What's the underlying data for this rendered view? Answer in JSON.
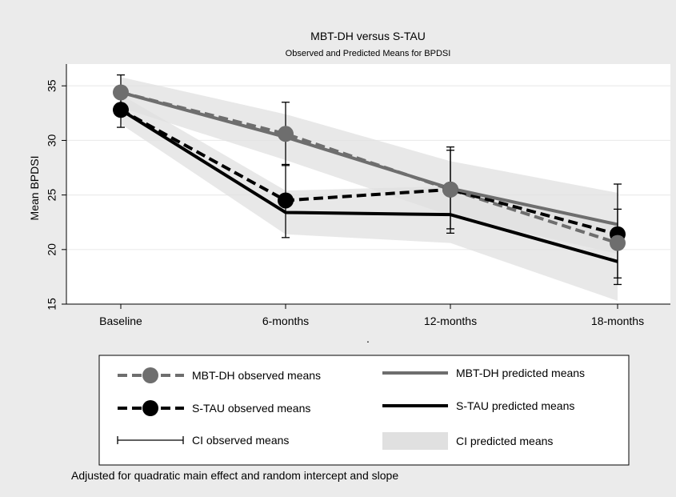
{
  "chart_data": {
    "type": "line",
    "title": "MBT-DH versus S-TAU",
    "subtitle": "Observed and Predicted Means for BPDSI",
    "xlabel": ".",
    "ylabel": "Mean BPDSI",
    "categories": [
      "Baseline",
      "6-months",
      "12-months",
      "18-months"
    ],
    "ylim": [
      15,
      37
    ],
    "yticks": [
      15,
      20,
      25,
      30,
      35
    ],
    "grid": true,
    "legend_position": "bottom",
    "note": "Adjusted for quadratic main effect and random intercept and slope",
    "series": [
      {
        "name": "MBT-DH observed means",
        "kind": "observed",
        "color": "#6e6e6e",
        "values": [
          34.4,
          30.6,
          25.5,
          20.6
        ]
      },
      {
        "name": "S-TAU observed means",
        "kind": "observed",
        "color": "#000000",
        "values": [
          32.8,
          24.5,
          25.5,
          21.4
        ]
      },
      {
        "name": "MBT-DH predicted means",
        "kind": "predicted",
        "color": "#6e6e6e",
        "values": [
          34.4,
          30.3,
          25.6,
          22.3
        ]
      },
      {
        "name": "S-TAU predicted means",
        "kind": "predicted",
        "color": "#000000",
        "values": [
          32.8,
          23.4,
          23.2,
          18.9
        ]
      }
    ],
    "ci_observed": [
      {
        "series": "MBT-DH",
        "lower": [
          33.0,
          27.7,
          21.9,
          17.4
        ],
        "upper": [
          36.0,
          33.5,
          29.1,
          23.7
        ]
      },
      {
        "series": "S-TAU",
        "lower": [
          31.2,
          21.1,
          21.5,
          16.8
        ],
        "upper": [
          34.4,
          27.8,
          29.4,
          26.0
        ]
      }
    ],
    "ci_predicted": [
      {
        "series": "MBT-DH",
        "lower": [
          33.0,
          28.2,
          23.1,
          19.6
        ],
        "upper": [
          35.8,
          32.4,
          28.1,
          25.2
        ]
      },
      {
        "series": "S-TAU",
        "lower": [
          31.5,
          21.4,
          20.6,
          15.3
        ],
        "upper": [
          34.2,
          25.4,
          25.8,
          22.4
        ]
      }
    ],
    "legend": [
      {
        "label": "MBT-DH observed means",
        "symbol": "dash-dot",
        "color": "#6e6e6e"
      },
      {
        "label": "MBT-DH predicted means",
        "symbol": "solid",
        "color": "#6e6e6e"
      },
      {
        "label": "S-TAU observed means",
        "symbol": "dash-dot",
        "color": "#000000"
      },
      {
        "label": "S-TAU predicted means",
        "symbol": "solid",
        "color": "#000000"
      },
      {
        "label": "CI observed means",
        "symbol": "capline",
        "color": "#000000"
      },
      {
        "label": "CI predicted means",
        "symbol": "band",
        "color": "#e0e0e0"
      }
    ],
    "colors": {
      "band": "#e0e0e0",
      "background": "#ebebeb",
      "plot_background": "#ffffff",
      "grid": "#ebebeb"
    }
  }
}
